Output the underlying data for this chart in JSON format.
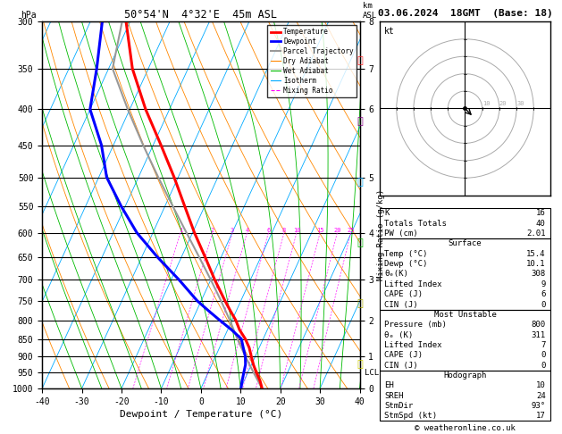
{
  "title_left": "50°54'N  4°32'E  45m ASL",
  "title_right": "03.06.2024  18GMT  (Base: 18)",
  "xlabel": "Dewpoint / Temperature (°C)",
  "ylabel_left": "hPa",
  "background_color": "#ffffff",
  "isotherm_color": "#00aaff",
  "dry_adiabat_color": "#ff8800",
  "wet_adiabat_color": "#00bb00",
  "mixing_ratio_color": "#ff00ff",
  "temp_line_color": "#ff0000",
  "dewpoint_line_color": "#0000ff",
  "parcel_color": "#999999",
  "temperature_data": {
    "pressure": [
      1000,
      975,
      950,
      925,
      900,
      875,
      850,
      825,
      800,
      775,
      750,
      700,
      650,
      600,
      550,
      500,
      450,
      400,
      350,
      300
    ],
    "temp_c": [
      15.4,
      14.0,
      12.2,
      10.5,
      9.0,
      7.5,
      5.5,
      3.0,
      1.0,
      -1.5,
      -4.0,
      -9.0,
      -14.0,
      -19.5,
      -25.0,
      -31.0,
      -38.0,
      -46.0,
      -54.0,
      -61.0
    ]
  },
  "dewpoint_data": {
    "pressure": [
      1000,
      975,
      950,
      925,
      900,
      875,
      850,
      825,
      800,
      775,
      750,
      700,
      650,
      600,
      550,
      500,
      450,
      400,
      350,
      300
    ],
    "dewp_c": [
      10.1,
      9.5,
      9.0,
      8.5,
      7.5,
      6.0,
      4.5,
      1.0,
      -3.0,
      -7.0,
      -11.0,
      -18.0,
      -26.0,
      -34.0,
      -41.0,
      -48.0,
      -53.0,
      -60.0,
      -63.0,
      -67.0
    ]
  },
  "parcel_data": {
    "pressure": [
      1000,
      950,
      900,
      850,
      800,
      750,
      700,
      650,
      600,
      550,
      500,
      450,
      400,
      350,
      300
    ],
    "temp_c": [
      15.4,
      11.5,
      7.5,
      3.5,
      -0.5,
      -5.0,
      -10.0,
      -15.5,
      -21.5,
      -28.0,
      -35.0,
      -42.5,
      -50.5,
      -59.0,
      -62.0
    ]
  },
  "stats": {
    "K": 16,
    "Totals_Totals": 40,
    "PW_cm": "2.01",
    "Surface_Temp": "15.4",
    "Surface_Dewp": "10.1",
    "Surface_ThetaE": 308,
    "Surface_LiftedIndex": 9,
    "Surface_CAPE": 6,
    "Surface_CIN": 0,
    "MU_Pressure": 800,
    "MU_ThetaE": 311,
    "MU_LiftedIndex": 7,
    "MU_CAPE": 0,
    "MU_CIN": 0,
    "EH": 10,
    "SREH": 24,
    "StmDir": "93°",
    "StmSpd": 17
  },
  "mixing_ratios": [
    1,
    2,
    3,
    4,
    6,
    8,
    10,
    15,
    20,
    25
  ],
  "lcl_pressure": 950,
  "copyright": "© weatheronline.co.uk",
  "p_ticks": [
    300,
    350,
    400,
    450,
    500,
    550,
    600,
    650,
    700,
    750,
    800,
    850,
    900,
    950,
    1000
  ],
  "km_ticks_p": [
    1000,
    900,
    800,
    700,
    600,
    500,
    400,
    350,
    300
  ],
  "km_vals": [
    0,
    1,
    2,
    3,
    4,
    5,
    6,
    7,
    8
  ],
  "skew": 35,
  "p_min": 300,
  "p_max": 1000,
  "temp_min": -40,
  "temp_max": 40
}
